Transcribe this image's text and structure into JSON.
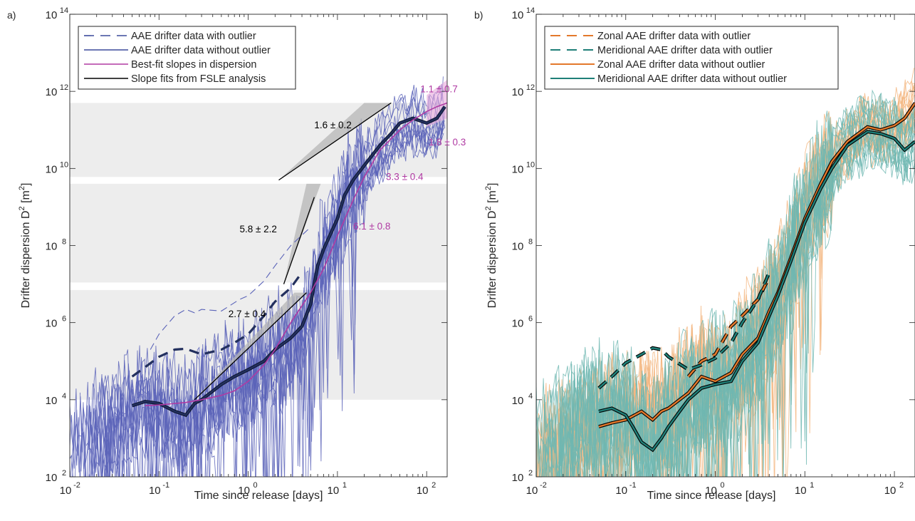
{
  "figure": {
    "panels": [
      {
        "id": "a",
        "panel_label": "a)",
        "xlabel": "Time since release [days]",
        "ylabel_main": "Drifter dispersion D",
        "ylabel_sup": "2",
        "ylabel_unit": " [m",
        "ylabel_unit_sup": "2",
        "ylabel_end": "]",
        "legend": [
          {
            "label": "AAE drifter data with outlier",
            "color": "#3b4a9c",
            "dash": true
          },
          {
            "label": "AAE drifter data without outlier",
            "color": "#3b4a9c",
            "dash": false
          },
          {
            "label": "Best-fit slopes in dispersion",
            "color": "#b03aa3",
            "dash": false
          },
          {
            "label": "Slope fits from FSLE analysis",
            "color": "#000000",
            "dash": false
          }
        ]
      },
      {
        "id": "b",
        "panel_label": "b)",
        "xlabel": "Time since release [days]",
        "ylabel_main": "Drifter dispersion D",
        "ylabel_sup": "2",
        "ylabel_unit": " [m",
        "ylabel_unit_sup": "2",
        "ylabel_end": "]",
        "legend": [
          {
            "label": "Zonal AAE drifter data with outlier",
            "color": "#e3782b",
            "dash": true
          },
          {
            "label": "Meridional AAE drifter data with outlier",
            "color": "#1f7f78",
            "dash": true
          },
          {
            "label": "Zonal AAE drifter data without outlier",
            "color": "#e3782b",
            "dash": false
          },
          {
            "label": "Meridional AAE drifter data without outlier",
            "color": "#1f7f78",
            "dash": false
          }
        ]
      }
    ]
  },
  "chart_data": [
    {
      "type": "line",
      "panel": "a",
      "xscale": "log",
      "yscale": "log",
      "xlim": [
        0.01,
        170
      ],
      "ylim": [
        100,
        100000000000000.0
      ],
      "xticks": [
        {
          "base": "10",
          "exp": "-2"
        },
        {
          "base": "10",
          "exp": "-1"
        },
        {
          "base": "10",
          "exp": "0"
        },
        {
          "base": "10",
          "exp": "1"
        },
        {
          "base": "10",
          "exp": "2"
        }
      ],
      "yticks": [
        {
          "base": "10",
          "exp": "2"
        },
        {
          "base": "10",
          "exp": "4"
        },
        {
          "base": "10",
          "exp": "6"
        },
        {
          "base": "10",
          "exp": "8"
        },
        {
          "base": "10",
          "exp": "10"
        },
        {
          "base": "10",
          "exp": "12"
        },
        {
          "base": "10",
          "exp": "14"
        }
      ],
      "shaded_bands": [
        {
          "y0": 10000.0,
          "y1": 7000000.0
        },
        {
          "y0": 11000000.0,
          "y1": 4000000000.0
        },
        {
          "y0": 6000000000.0,
          "y1": 500000000000.0
        }
      ],
      "series": [
        {
          "name": "AAE drifter data with outlier",
          "style": "dashed-thick",
          "color": "#23305e",
          "x": [
            0.05,
            0.07,
            0.1,
            0.15,
            0.2,
            0.3,
            0.5,
            0.7,
            1.0,
            1.5,
            2.0,
            3.0,
            4.0
          ],
          "y": [
            40000.0,
            70000.0,
            130000.0,
            200000.0,
            210000.0,
            150000.0,
            200000.0,
            300000.0,
            500000.0,
            1500000.0,
            3500000.0,
            8000000.0,
            20000000.0
          ]
        },
        {
          "name": "AAE drifter data with outlier (individual)",
          "style": "dashed-thin",
          "color": "#5a63b8",
          "x": [
            0.08,
            0.1,
            0.15,
            0.2,
            0.25,
            0.3,
            0.5,
            0.8,
            1.0,
            1.5,
            2.0,
            3.0,
            5.0
          ],
          "y": [
            200000.0,
            500000.0,
            1500000.0,
            2200000.0,
            1800000.0,
            2200000.0,
            2000000.0,
            4000000.0,
            5000000.0,
            12000000.0,
            30000000.0,
            100000000.0,
            300000000.0
          ]
        },
        {
          "name": "AAE drifter data without outlier",
          "style": "solid-thick",
          "color": "#23305e",
          "x": [
            0.05,
            0.07,
            0.1,
            0.15,
            0.2,
            0.25,
            0.3,
            0.5,
            0.7,
            1.0,
            1.5,
            2.0,
            3.0,
            4.0,
            5.0,
            6.0,
            7.0,
            10,
            12,
            15,
            20,
            30,
            40,
            50,
            70,
            100,
            130,
            160
          ],
          "y": [
            7000.0,
            9000.0,
            8000.0,
            5000.0,
            4000.0,
            8000.0,
            10000.0,
            25000.0,
            40000.0,
            60000.0,
            100000.0,
            200000.0,
            400000.0,
            800000.0,
            3000000.0,
            30000000.0,
            80000000.0,
            500000000.0,
            2000000000.0,
            5000000000.0,
            12000000000.0,
            40000000000.0,
            80000000000.0,
            150000000000.0,
            200000000000.0,
            150000000000.0,
            200000000000.0,
            400000000000.0
          ]
        },
        {
          "name": "Best-fit slopes in dispersion",
          "style": "solid",
          "color": "#b03aa3",
          "x": [
            0.07,
            0.1,
            0.2,
            0.3,
            0.5,
            0.7,
            1.0,
            1.5,
            2.0,
            3.0,
            5.0,
            7.0,
            10,
            15,
            20,
            30,
            50,
            70,
            100,
            130,
            170
          ],
          "y": [
            7000.0,
            7300.0,
            8500.0,
            10000.0,
            13000.0,
            17000.0,
            30000.0,
            80000.0,
            200000.0,
            1000000.0,
            6000000.0,
            25000000.0,
            180000000.0,
            1500000000.0,
            6000000000.0,
            30000000000.0,
            100000000000.0,
            180000000000.0,
            300000000000.0,
            400000000000.0,
            500000000000.0
          ]
        },
        {
          "name": "Slope fits from FSLE analysis",
          "style": "solid",
          "color": "#000000",
          "segments": [
            {
              "x": [
                0.25,
                4.5
              ],
              "y": [
                10000.0,
                6000000.0
              ]
            },
            {
              "x": [
                2.5,
                5.5
              ],
              "y": [
                10000000.0,
                1800000000.0
              ]
            },
            {
              "x": [
                2.2,
                40
              ],
              "y": [
                5000000000.0,
                500000000000.0
              ]
            }
          ]
        }
      ],
      "annotations": [
        {
          "text": "2.7 ± 0.4",
          "x": 0.6,
          "y": 1400000.0,
          "color": "#000000"
        },
        {
          "text": "5.8 ± 2.2",
          "x": 0.8,
          "y": 220000000.0,
          "color": "#000000"
        },
        {
          "text": "1.6 ± 0.2",
          "x": 5.5,
          "y": 110000000000.0,
          "color": "#000000"
        },
        {
          "text": "6.1 ± 0.8",
          "x": 15,
          "y": 260000000.0,
          "color": "#b03aa3"
        },
        {
          "text": "3.3 ± 0.4",
          "x": 35,
          "y": 5000000000.0,
          "color": "#b03aa3"
        },
        {
          "text": "1.8 ± 0.3",
          "x": 105,
          "y": 40000000000.0,
          "color": "#b03aa3"
        },
        {
          "text": "1.1 ± 0.7",
          "x": 85,
          "y": 950000000000.0,
          "color": "#b03aa3"
        }
      ]
    },
    {
      "type": "line",
      "panel": "b",
      "xscale": "log",
      "yscale": "log",
      "xlim": [
        0.01,
        170
      ],
      "ylim": [
        100,
        100000000000000.0
      ],
      "xticks": [
        {
          "base": "10",
          "exp": "-2"
        },
        {
          "base": "10",
          "exp": "-1"
        },
        {
          "base": "10",
          "exp": "0"
        },
        {
          "base": "10",
          "exp": "1"
        },
        {
          "base": "10",
          "exp": "2"
        }
      ],
      "yticks": [
        {
          "base": "10",
          "exp": "2"
        },
        {
          "base": "10",
          "exp": "4"
        },
        {
          "base": "10",
          "exp": "6"
        },
        {
          "base": "10",
          "exp": "8"
        },
        {
          "base": "10",
          "exp": "10"
        },
        {
          "base": "10",
          "exp": "12"
        },
        {
          "base": "10",
          "exp": "14"
        }
      ],
      "series": [
        {
          "name": "Zonal AAE drifter data with outlier",
          "style": "dashed-thick",
          "color": "#e3782b",
          "x": [
            0.5,
            0.7,
            1.0,
            1.5,
            2.0,
            3.0,
            4.0
          ],
          "y": [
            40000.0,
            100000.0,
            150000.0,
            800000.0,
            1500000.0,
            4000000.0,
            15000000.0
          ]
        },
        {
          "name": "Meridional AAE drifter data with outlier",
          "style": "dashed-thick",
          "color": "#1f7f78",
          "x": [
            0.05,
            0.07,
            0.1,
            0.15,
            0.2,
            0.25,
            0.3,
            0.5,
            0.7,
            1.0,
            1.5,
            2.0,
            3.0,
            4.0
          ],
          "y": [
            20000.0,
            40000.0,
            90000.0,
            150000.0,
            220000.0,
            200000.0,
            130000.0,
            60000.0,
            80000.0,
            120000.0,
            300000.0,
            1000000.0,
            4000000.0,
            20000000.0
          ]
        },
        {
          "name": "Zonal AAE drifter data without outlier",
          "style": "solid-thick",
          "color": "#e3782b",
          "x": [
            0.05,
            0.07,
            0.1,
            0.15,
            0.2,
            0.25,
            0.3,
            0.5,
            0.7,
            1.0,
            1.5,
            2.0,
            3.0,
            4.0,
            5.0,
            7.0,
            10,
            15,
            20,
            30,
            50,
            70,
            100,
            130,
            170
          ],
          "y": [
            2000.0,
            2500.0,
            3000.0,
            5000.0,
            3000.0,
            5000.0,
            6000.0,
            15000.0,
            40000.0,
            30000.0,
            50000.0,
            150000.0,
            400000.0,
            2000000.0,
            6000000.0,
            50000000.0,
            500000000.0,
            4000000000.0,
            15000000000.0,
            50000000000.0,
            120000000000.0,
            100000000000.0,
            130000000000.0,
            200000000000.0,
            500000000000.0
          ]
        },
        {
          "name": "Meridional AAE drifter data without outlier",
          "style": "solid-thick",
          "color": "#1f7f78",
          "x": [
            0.05,
            0.07,
            0.1,
            0.12,
            0.15,
            0.2,
            0.25,
            0.3,
            0.4,
            0.5,
            0.7,
            1.0,
            1.5,
            2.0,
            3.0,
            4.0,
            5.0,
            7.0,
            10,
            15,
            20,
            30,
            50,
            70,
            100,
            130,
            170
          ],
          "y": [
            5000.0,
            6000.0,
            4000.0,
            2000.0,
            800.0,
            500.0,
            1000.0,
            2000.0,
            5000.0,
            10000.0,
            20000.0,
            25000.0,
            30000.0,
            100000.0,
            300000.0,
            1500000.0,
            5000000.0,
            40000000.0,
            400000000.0,
            3000000000.0,
            10000000000.0,
            40000000000.0,
            90000000000.0,
            80000000000.0,
            60000000000.0,
            30000000000.0,
            50000000000.0
          ]
        }
      ]
    }
  ]
}
